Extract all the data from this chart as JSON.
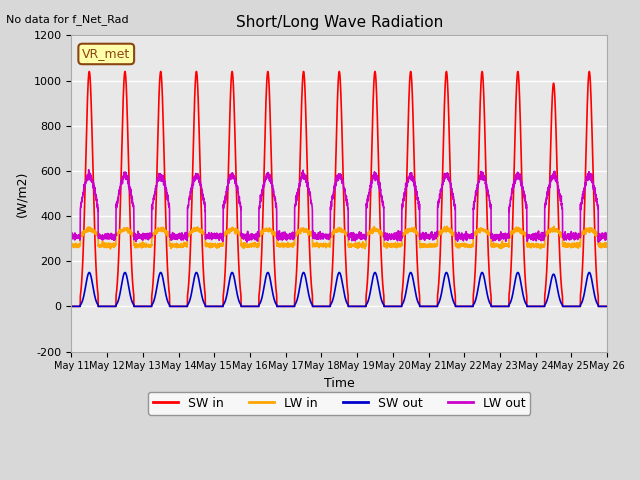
{
  "title": "Short/Long Wave Radiation",
  "xlabel": "Time",
  "ylabel": "(W/m2)",
  "ylim": [
    -200,
    1200
  ],
  "xlim_days": [
    0,
    15
  ],
  "annotation": "No data for f_Net_Rad",
  "box_label": "VR_met",
  "x_tick_labels": [
    "May 11",
    "May 12",
    "May 13",
    "May 14",
    "May 15",
    "May 16",
    "May 17",
    "May 18",
    "May 19",
    "May 20",
    "May 21",
    "May 22",
    "May 23",
    "May 24",
    "May 25",
    "May 26"
  ],
  "bg_color": "#e8e8e8",
  "plot_bg_color": "#f0f0f0",
  "sw_in_color": "#ff0000",
  "lw_in_color": "#ffa500",
  "sw_out_color": "#0000cc",
  "lw_out_color": "#cc00cc",
  "sw_in_peak": 1040,
  "sw_out_peak": 150,
  "lw_in_base": 270,
  "lw_in_peak_add": 70,
  "lw_out_base": 310,
  "lw_out_peak_add": 270,
  "n_days": 15,
  "pts_per_day": 240
}
